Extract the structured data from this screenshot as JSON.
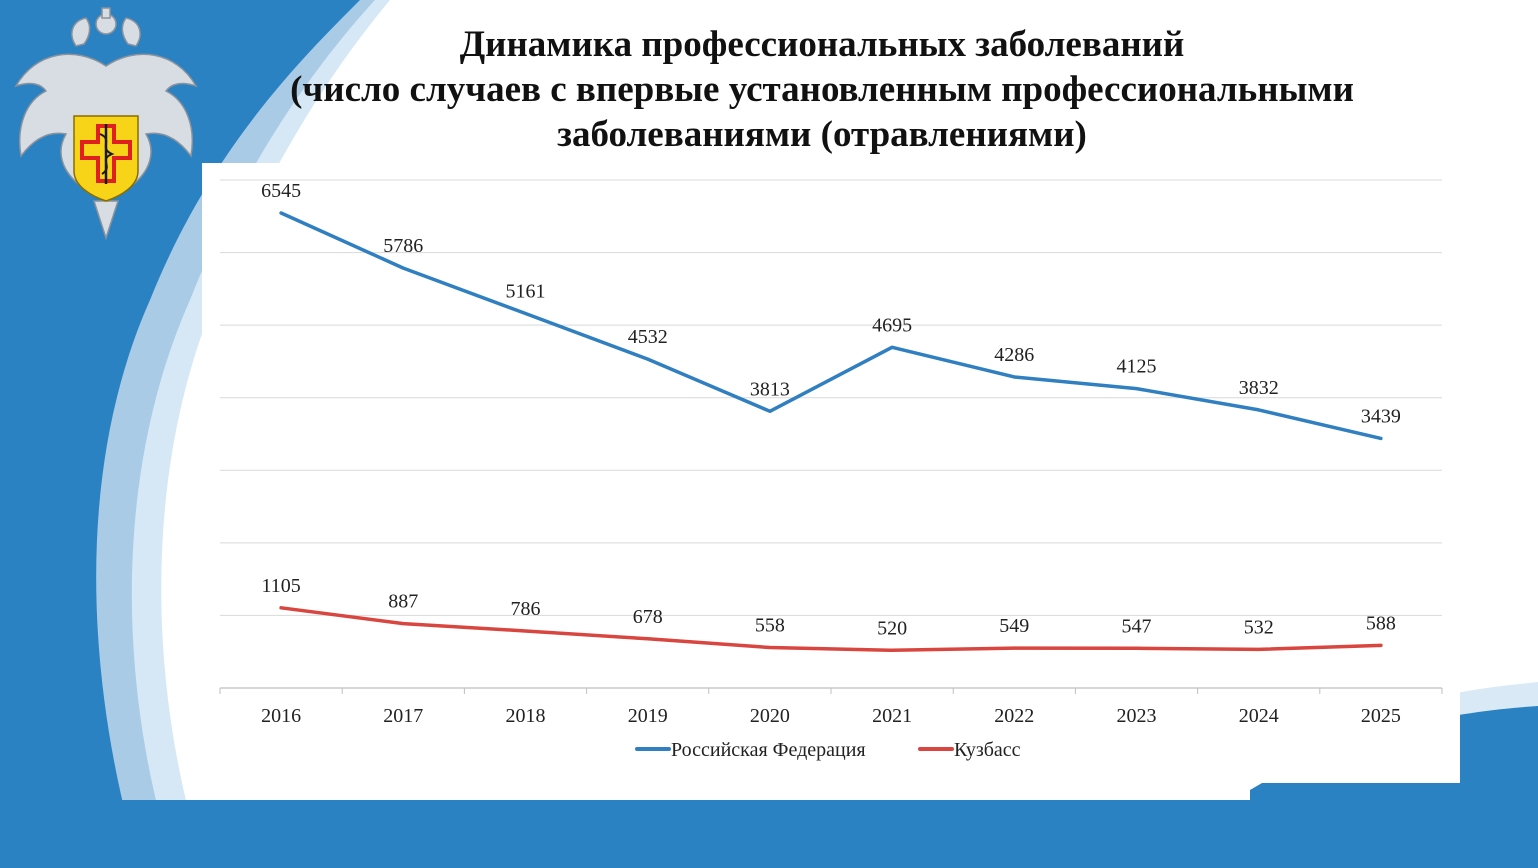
{
  "title": {
    "line1": "Динамика профессиональных заболеваний",
    "line2": "(число случаев с впервые установленным профессиональными",
    "line3": "заболеваниями (отравлениями)"
  },
  "colors": {
    "background": "#2a82c2",
    "series_rf": "#2f7fc1",
    "series_kuzbass": "#d9453f",
    "emblem_shield": "#f7d417",
    "emblem_cross": "#e02020"
  },
  "emblem": {
    "icon": "double-headed-eagle-emblem-icon"
  },
  "chart_data": {
    "type": "line",
    "x": [
      "2016",
      "2017",
      "2018",
      "2019",
      "2020",
      "2021",
      "2022",
      "2023",
      "2024",
      "2025"
    ],
    "series": [
      {
        "name": "Российская Федерация",
        "values": [
          6545,
          5786,
          5161,
          4532,
          3813,
          4695,
          4286,
          4125,
          3832,
          3439
        ]
      },
      {
        "name": "Кузбасс",
        "values": [
          1105,
          887,
          786,
          678,
          558,
          520,
          549,
          547,
          532,
          588
        ]
      }
    ],
    "ylim": [
      0,
      7000
    ],
    "y_gridlines": [
      1000,
      2000,
      3000,
      4000,
      5000,
      6000,
      7000
    ],
    "grid": true,
    "y_tick_labels_shown": false,
    "data_labels": true,
    "legend_position": "bottom"
  }
}
